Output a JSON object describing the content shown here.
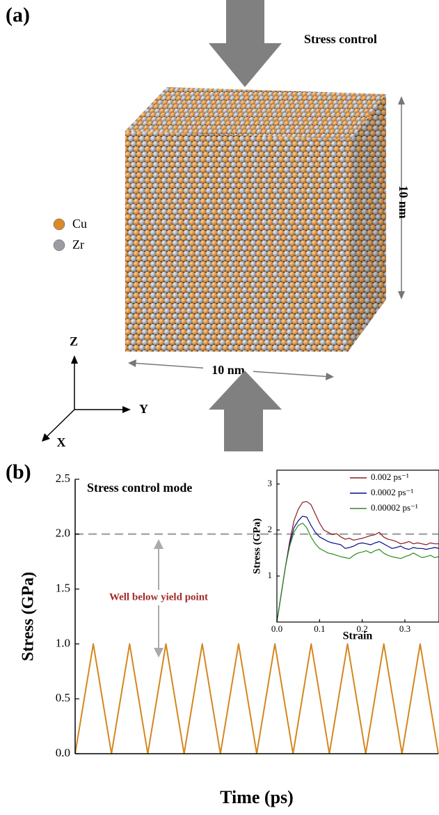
{
  "panel_a": {
    "label": "(a)",
    "stress_label": "Stress control",
    "dimensions": [
      "10 nm",
      "10 nm"
    ],
    "legend": [
      {
        "name": "Cu",
        "color": "#d98a2a"
      },
      {
        "name": "Zr",
        "color": "#9c9ca4"
      }
    ],
    "axes": [
      "Z",
      "Y",
      "X"
    ]
  },
  "chart_data": [
    {
      "type": "line",
      "panel_label": "(b)",
      "xlabel": "Time (ps)",
      "ylabel": "Stress (GPa)",
      "annotations": [
        "Stress control mode",
        "Well below yield point"
      ],
      "hline": 2.0,
      "x": [
        0,
        1,
        2,
        3,
        4,
        5,
        6,
        7,
        8,
        9,
        10,
        11,
        12,
        13,
        14,
        15,
        16,
        17,
        18,
        19,
        20
      ],
      "series": [
        {
          "color": "#d4861e",
          "values": [
            0,
            1,
            0,
            1,
            0,
            1,
            0,
            1,
            0,
            1,
            0,
            1,
            0,
            1,
            0,
            1,
            0,
            1,
            0,
            1,
            0
          ]
        }
      ],
      "xlim": [
        0,
        20
      ],
      "ylim": [
        0,
        2.5
      ],
      "yticks": [
        {
          "value": 0,
          "label": "0.0"
        },
        0.5,
        {
          "value": 1,
          "label": "1.0"
        },
        1.5,
        {
          "value": 2,
          "label": "2.0"
        },
        2.5
      ]
    },
    {
      "type": "line",
      "xlabel": "Strain",
      "ylabel": "Stress (GPa)",
      "legend": "upper right",
      "x": [
        0,
        0.01,
        0.02,
        0.03,
        0.04,
        0.05,
        0.06,
        0.07,
        0.08,
        0.09,
        0.1,
        0.11,
        0.12,
        0.13,
        0.14,
        0.15,
        0.16,
        0.17,
        0.18,
        0.19,
        0.2,
        0.21,
        0.22,
        0.23,
        0.24,
        0.25,
        0.26,
        0.27,
        0.28,
        0.29,
        0.3,
        0.31,
        0.32,
        0.33,
        0.34,
        0.35,
        0.36,
        0.37,
        0.38
      ],
      "series": [
        {
          "name": "0.002 ps⁻¹",
          "color": "#8b1a1a",
          "values": [
            0,
            0.6,
            1.2,
            1.75,
            2.2,
            2.45,
            2.6,
            2.62,
            2.55,
            2.35,
            2.15,
            2.0,
            1.95,
            1.9,
            1.92,
            1.85,
            1.8,
            1.82,
            1.78,
            1.8,
            1.82,
            1.85,
            1.88,
            1.9,
            1.95,
            1.85,
            1.8,
            1.78,
            1.75,
            1.7,
            1.72,
            1.75,
            1.7,
            1.72,
            1.7,
            1.68,
            1.72,
            1.7,
            1.7
          ]
        },
        {
          "name": "0.0002 ps⁻¹",
          "color": "#0a0a8c",
          "values": [
            0,
            0.6,
            1.2,
            1.7,
            2.05,
            2.2,
            2.3,
            2.28,
            2.1,
            1.95,
            1.85,
            1.8,
            1.75,
            1.72,
            1.7,
            1.68,
            1.6,
            1.62,
            1.65,
            1.7,
            1.72,
            1.7,
            1.68,
            1.72,
            1.75,
            1.7,
            1.65,
            1.6,
            1.62,
            1.65,
            1.6,
            1.58,
            1.62,
            1.6,
            1.6,
            1.58,
            1.6,
            1.62,
            1.6
          ]
        },
        {
          "name": "0.00002 ps⁻¹",
          "color": "#2e8b22",
          "values": [
            0,
            0.6,
            1.2,
            1.65,
            1.95,
            2.1,
            2.15,
            2.05,
            1.85,
            1.7,
            1.6,
            1.55,
            1.5,
            1.48,
            1.45,
            1.42,
            1.4,
            1.38,
            1.45,
            1.5,
            1.52,
            1.55,
            1.5,
            1.55,
            1.58,
            1.5,
            1.45,
            1.42,
            1.4,
            1.38,
            1.42,
            1.45,
            1.5,
            1.45,
            1.4,
            1.42,
            1.45,
            1.4,
            1.42
          ]
        }
      ],
      "xlim": [
        0,
        0.38
      ],
      "ylim": [
        0,
        3.3
      ],
      "xticks": [
        {
          "value": 0,
          "label": "0.0"
        },
        0.1,
        0.2,
        0.3
      ],
      "yticks": [
        1,
        2,
        3
      ]
    }
  ]
}
